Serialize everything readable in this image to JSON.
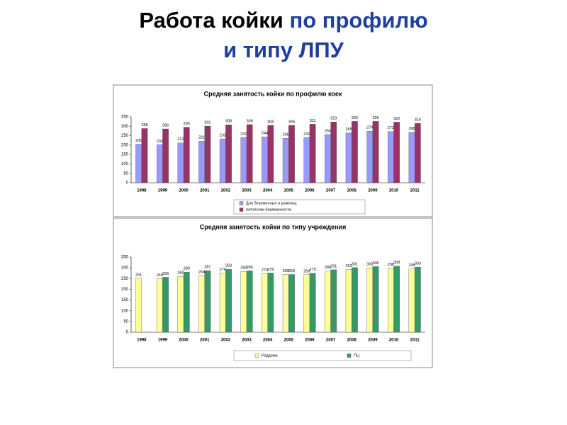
{
  "slide": {
    "title": [
      "Работа койки",
      "по профилю",
      "и типу ЛПУ"
    ]
  },
  "chart_data": [
    {
      "type": "bar",
      "title": "Средняя занятость койки по профилю коек",
      "categories": [
        "1998",
        "1999",
        "2000",
        "2001",
        "2002",
        "2003",
        "2004",
        "2005",
        "2006",
        "2007",
        "2008",
        "2009",
        "2010",
        "2011"
      ],
      "series": [
        {
          "name": "Для беременных и рожениц",
          "color": "#9999ff",
          "values": [
            205,
            202,
            212,
            221,
            233,
            241,
            244,
            236,
            241,
            256,
            265,
            274,
            272,
            268
          ]
        },
        {
          "name": "патологии беременности",
          "color": "#993366",
          "values": [
            288,
            286,
            295,
            301,
            308,
            309,
            305,
            305,
            311,
            323,
            326,
            326,
            322,
            316
          ]
        }
      ],
      "ylim": [
        0,
        350
      ],
      "yticks": [
        0,
        50,
        100,
        150,
        200,
        250,
        300,
        350
      ],
      "legend": "bottom"
    },
    {
      "type": "bar",
      "title": "Средняя занятость койки по типу учреждения",
      "categories": [
        "1998",
        "1999",
        "2000",
        "2001",
        "2002",
        "2003",
        "2004",
        "2005",
        "2006",
        "2007",
        "2008",
        "2009",
        "2010",
        "2011"
      ],
      "series": [
        {
          "name": "Роддома",
          "color": "#ffff99",
          "values": [
            251,
            249,
            260,
            264,
            276,
            283,
            274,
            269,
            268,
            285,
            292,
            300,
            298,
            295
          ]
        },
        {
          "name": "ПЦ",
          "color": "#339966",
          "values": [
            null,
            256,
            280,
            287,
            293,
            286,
            276,
            269,
            275,
            291,
            301,
            306,
            308,
            303
          ]
        }
      ],
      "ylim": [
        0,
        350
      ],
      "yticks": [
        0,
        50,
        100,
        150,
        200,
        250,
        300,
        350
      ],
      "legend": "bottom"
    }
  ]
}
